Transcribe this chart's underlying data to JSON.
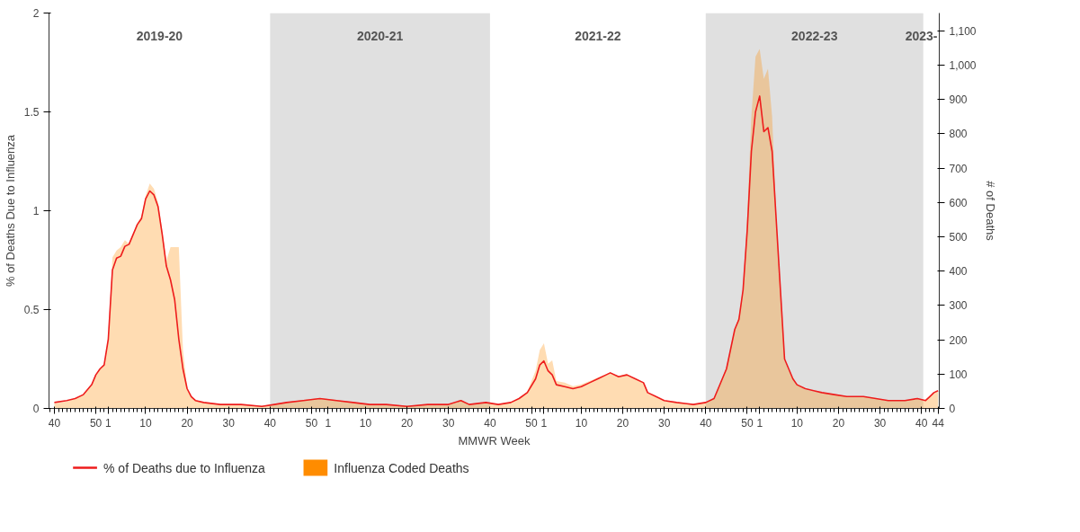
{
  "chart_data": {
    "type": "line",
    "xlabel": "MMWR Week",
    "ylabel": "% of Deaths Due to Influenza",
    "y2label": "# of Deaths",
    "xlim": [
      "2019-09-26",
      "2023-11-06"
    ],
    "xticks": [
      {
        "value": "2019-10-05",
        "label": "40"
      },
      {
        "value": "2019-12-14",
        "label": "50"
      },
      {
        "value": "2020-01-04",
        "label": "1"
      },
      {
        "value": "2020-03-07",
        "label": "10"
      },
      {
        "value": "2020-05-16",
        "label": "20"
      },
      {
        "value": "2020-07-25",
        "label": "30"
      },
      {
        "value": "2020-10-03",
        "label": "40"
      },
      {
        "value": "2020-12-12",
        "label": "50"
      },
      {
        "value": "2021-01-09",
        "label": "1"
      },
      {
        "value": "2021-03-13",
        "label": "10"
      },
      {
        "value": "2021-05-22",
        "label": "20"
      },
      {
        "value": "2021-07-31",
        "label": "30"
      },
      {
        "value": "2021-10-09",
        "label": "40"
      },
      {
        "value": "2021-12-18",
        "label": "50"
      },
      {
        "value": "2022-01-08",
        "label": "1"
      },
      {
        "value": "2022-03-12",
        "label": "10"
      },
      {
        "value": "2022-05-21",
        "label": "20"
      },
      {
        "value": "2022-07-30",
        "label": "30"
      },
      {
        "value": "2022-10-08",
        "label": "40"
      },
      {
        "value": "2022-12-17",
        "label": "50"
      },
      {
        "value": "2023-01-07",
        "label": "1"
      },
      {
        "value": "2023-03-11",
        "label": "10"
      },
      {
        "value": "2023-05-20",
        "label": "20"
      },
      {
        "value": "2023-07-29",
        "label": "30"
      },
      {
        "value": "2023-10-07",
        "label": "40"
      },
      {
        "value": "2023-11-04",
        "label": "44"
      }
    ],
    "ylim": [
      0,
      2
    ],
    "yticks": [
      0,
      0.5,
      1,
      1.5,
      2
    ],
    "y2lim": [
      0,
      1152
    ],
    "y2ticks": [
      0,
      100,
      200,
      300,
      400,
      500,
      600,
      700,
      800,
      900,
      {
        "value": 1000,
        "label": "1,000"
      },
      {
        "value": 1100,
        "label": "1,100"
      }
    ],
    "grid": false,
    "legend": "bottom",
    "line_style": "solid",
    "marker": "none",
    "bands": [
      {
        "axis": "x",
        "from": "2020-10-03",
        "to": "2021-10-09",
        "label": "2020-21",
        "color": "#e0e0e0"
      },
      {
        "axis": "x",
        "from": "2022-10-08",
        "to": "2023-10-10",
        "label": "2022-23",
        "color": "#e0e0e0"
      }
    ],
    "annotations": [
      "2019-20",
      "2021-22",
      "2023-"
    ],
    "x": [
      "2019-10-05",
      "2019-10-26",
      "2019-11-09",
      "2019-11-23",
      "2019-12-07",
      "2019-12-14",
      "2019-12-21",
      "2019-12-28",
      "2020-01-04",
      "2020-01-11",
      "2020-01-18",
      "2020-01-25",
      "2020-02-01",
      "2020-02-08",
      "2020-02-15",
      "2020-02-22",
      "2020-02-29",
      "2020-03-07",
      "2020-03-14",
      "2020-03-21",
      "2020-03-28",
      "2020-04-04",
      "2020-04-11",
      "2020-04-18",
      "2020-04-25",
      "2020-05-02",
      "2020-05-09",
      "2020-05-16",
      "2020-05-23",
      "2020-05-30",
      "2020-06-13",
      "2020-07-11",
      "2020-08-15",
      "2020-09-19",
      "2020-10-10",
      "2020-10-31",
      "2020-11-28",
      "2020-12-26",
      "2021-01-23",
      "2021-02-20",
      "2021-03-20",
      "2021-04-17",
      "2021-05-22",
      "2021-06-26",
      "2021-07-31",
      "2021-08-21",
      "2021-09-04",
      "2021-10-02",
      "2021-10-23",
      "2021-11-13",
      "2021-11-27",
      "2021-12-11",
      "2021-12-25",
      "2022-01-01",
      "2022-01-08",
      "2022-01-15",
      "2022-01-22",
      "2022-01-29",
      "2022-02-12",
      "2022-02-26",
      "2022-03-12",
      "2022-03-26",
      "2022-04-09",
      "2022-04-23",
      "2022-04-30",
      "2022-05-14",
      "2022-05-28",
      "2022-06-11",
      "2022-06-25",
      "2022-07-02",
      "2022-07-16",
      "2022-07-30",
      "2022-08-20",
      "2022-09-17",
      "2022-10-08",
      "2022-10-22",
      "2022-10-29",
      "2022-11-12",
      "2022-11-19",
      "2022-11-26",
      "2022-12-03",
      "2022-12-10",
      "2022-12-17",
      "2022-12-24",
      "2022-12-31",
      "2023-01-07",
      "2023-01-14",
      "2023-01-21",
      "2023-01-28",
      "2023-02-04",
      "2023-02-11",
      "2023-02-18",
      "2023-02-25",
      "2023-03-04",
      "2023-03-11",
      "2023-03-25",
      "2023-04-08",
      "2023-04-22",
      "2023-05-13",
      "2023-06-03",
      "2023-07-01",
      "2023-07-22",
      "2023-08-12",
      "2023-09-09",
      "2023-09-30",
      "2023-10-14",
      "2023-10-21",
      "2023-10-28",
      "2023-11-04"
    ],
    "series": [
      {
        "name": "% of Deaths due to Influenza",
        "color": "#ee1c1c",
        "values": [
          0.03,
          0.04,
          0.05,
          0.07,
          0.12,
          0.17,
          0.2,
          0.22,
          0.35,
          0.7,
          0.76,
          0.77,
          0.82,
          0.83,
          0.88,
          0.93,
          0.96,
          1.06,
          1.1,
          1.08,
          1.02,
          0.88,
          0.72,
          0.65,
          0.55,
          0.35,
          0.2,
          0.1,
          0.06,
          0.04,
          0.03,
          0.02,
          0.02,
          0.01,
          0.02,
          0.03,
          0.04,
          0.05,
          0.04,
          0.03,
          0.02,
          0.02,
          0.01,
          0.02,
          0.02,
          0.04,
          0.02,
          0.03,
          0.02,
          0.03,
          0.05,
          0.08,
          0.15,
          0.22,
          0.24,
          0.19,
          0.17,
          0.12,
          0.11,
          0.1,
          0.11,
          0.13,
          0.15,
          0.17,
          0.18,
          0.16,
          0.17,
          0.15,
          0.13,
          0.08,
          0.06,
          0.04,
          0.03,
          0.02,
          0.03,
          0.05,
          0.1,
          0.2,
          0.3,
          0.4,
          0.45,
          0.6,
          0.9,
          1.3,
          1.5,
          1.58,
          1.4,
          1.42,
          1.3,
          0.95,
          0.6,
          0.25,
          0.2,
          0.15,
          0.12,
          0.1,
          0.09,
          0.08,
          0.07,
          0.06,
          0.06,
          0.05,
          0.04,
          0.04,
          0.05,
          0.04,
          0.06,
          0.08,
          0.09
        ]
      },
      {
        "name": "Influenza Coded Deaths",
        "type": "area",
        "axis": "y2",
        "color": "#ff8c00",
        "values": [
          15,
          20,
          28,
          40,
          70,
          95,
          115,
          125,
          200,
          440,
          460,
          470,
          490,
          480,
          510,
          540,
          560,
          620,
          655,
          640,
          600,
          520,
          430,
          470,
          470,
          470,
          170,
          60,
          35,
          25,
          18,
          12,
          12,
          8,
          12,
          18,
          25,
          30,
          25,
          18,
          12,
          12,
          8,
          12,
          12,
          25,
          12,
          18,
          12,
          18,
          30,
          50,
          110,
          170,
          190,
          130,
          140,
          80,
          75,
          65,
          70,
          80,
          90,
          100,
          105,
          95,
          100,
          85,
          75,
          45,
          35,
          22,
          18,
          12,
          18,
          30,
          60,
          120,
          175,
          230,
          270,
          350,
          560,
          850,
          1025,
          1047,
          960,
          990,
          850,
          560,
          350,
          140,
          110,
          85,
          70,
          55,
          50,
          45,
          40,
          35,
          35,
          28,
          22,
          22,
          28,
          22,
          35,
          45,
          50
        ]
      }
    ]
  }
}
